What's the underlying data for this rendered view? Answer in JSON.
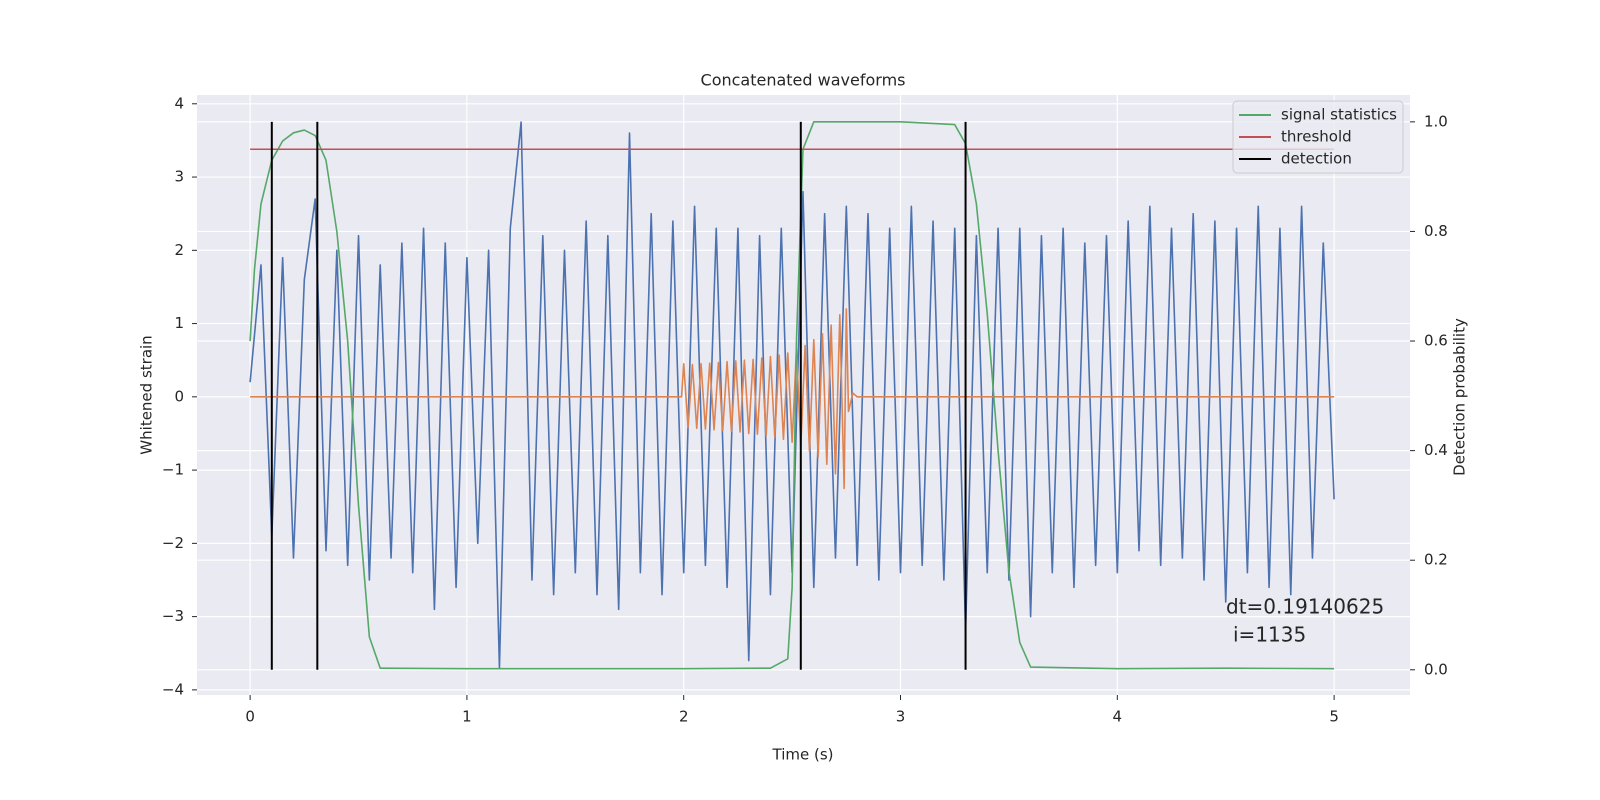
{
  "chart_data": {
    "type": "line",
    "title": "Concatenated waveforms",
    "xlabel": "Time (s)",
    "ylabel": "Whitened strain",
    "y2label": "Detection probability",
    "xlim": [
      -0.245,
      5.35
    ],
    "xticks": [
      0,
      1,
      2,
      3,
      4,
      5
    ],
    "ylim": [
      -4.07,
      4.12
    ],
    "yticks": [
      {
        "value": -4,
        "label": "−4"
      },
      {
        "value": -3,
        "label": "−3"
      },
      {
        "value": -2,
        "label": "−2"
      },
      {
        "value": -1,
        "label": "−1"
      },
      0,
      1,
      2,
      3,
      4
    ],
    "y2lim": [
      -0.046,
      1.049
    ],
    "y2ticks": [
      {
        "value": 0,
        "label": "0.0"
      },
      0.2,
      0.4,
      0.6,
      0.8,
      {
        "value": 1,
        "label": "1.0"
      }
    ],
    "grid": true,
    "legend": "upper right",
    "annotation": [
      "dt=0.19140625",
      "i=1135"
    ],
    "series": [
      {
        "color": "#4c72b0",
        "x": [
          0,
          0.05,
          0.1,
          0.15,
          0.2,
          0.25,
          0.3,
          0.35,
          0.4,
          0.45,
          0.5,
          0.55,
          0.6,
          0.65,
          0.7,
          0.75,
          0.8,
          0.85,
          0.9,
          0.95,
          1,
          1.05,
          1.1,
          1.15,
          1.2,
          1.25,
          1.3,
          1.35,
          1.4,
          1.45,
          1.5,
          1.55,
          1.6,
          1.65,
          1.7,
          1.75,
          1.8,
          1.85,
          1.9,
          1.95,
          2,
          2.05,
          2.1,
          2.15,
          2.2,
          2.25,
          2.3,
          2.35,
          2.4,
          2.45,
          2.5,
          2.55,
          2.6,
          2.65,
          2.7,
          2.75,
          2.8,
          2.85,
          2.9,
          2.95,
          3,
          3.05,
          3.1,
          3.15,
          3.2,
          3.25,
          3.3,
          3.35,
          3.4,
          3.45,
          3.5,
          3.55,
          3.6,
          3.65,
          3.7,
          3.75,
          3.8,
          3.85,
          3.9,
          3.95,
          4,
          4.05,
          4.1,
          4.15,
          4.2,
          4.25,
          4.3,
          4.35,
          4.4,
          4.45,
          4.5,
          4.55,
          4.6,
          4.65,
          4.7,
          4.75,
          4.8,
          4.85,
          4.9,
          4.95,
          5
        ],
        "values": [
          0.2,
          1.8,
          -1.9,
          1.9,
          -2.2,
          1.6,
          2.7,
          -2.1,
          2.0,
          -2.3,
          2.2,
          -2.5,
          1.8,
          -2.2,
          2.1,
          -2.4,
          2.3,
          -2.9,
          2.1,
          -2.6,
          1.9,
          -2.0,
          2.0,
          -3.7,
          2.3,
          3.75,
          -2.5,
          2.2,
          -2.7,
          2.0,
          -2.4,
          2.4,
          -2.7,
          2.2,
          -2.9,
          3.6,
          -2.4,
          2.5,
          -2.7,
          2.4,
          -2.4,
          2.6,
          -2.3,
          2.3,
          -2.6,
          2.3,
          -3.6,
          2.2,
          -2.7,
          2.3,
          -2.4,
          2.8,
          -2.6,
          2.5,
          -2.2,
          2.6,
          -2.3,
          2.5,
          -2.5,
          2.3,
          -2.4,
          2.6,
          -2.3,
          2.4,
          -2.5,
          2.3,
          -3.2,
          2.2,
          -2.4,
          2.3,
          -2.5,
          2.3,
          -3.0,
          2.2,
          -2.4,
          2.3,
          -2.6,
          2.1,
          -2.3,
          2.2,
          -2.4,
          2.4,
          -2.1,
          2.6,
          -2.3,
          2.3,
          -2.2,
          2.5,
          -2.5,
          2.4,
          -2.8,
          2.3,
          -2.4,
          2.6,
          -2.6,
          2.3,
          -2.7,
          2.6,
          -2.2,
          2.1,
          -1.4
        ]
      },
      {
        "color": "#dd8452",
        "x": [
          0,
          1.99,
          2.0,
          2.02,
          2.04,
          2.06,
          2.08,
          2.1,
          2.12,
          2.14,
          2.16,
          2.18,
          2.2,
          2.22,
          2.24,
          2.26,
          2.28,
          2.3,
          2.32,
          2.34,
          2.36,
          2.38,
          2.4,
          2.42,
          2.44,
          2.46,
          2.48,
          2.5,
          2.52,
          2.54,
          2.56,
          2.58,
          2.6,
          2.62,
          2.64,
          2.66,
          2.68,
          2.7,
          2.72,
          2.74,
          2.75,
          2.76,
          2.78,
          2.8,
          5
        ],
        "values": [
          0,
          0,
          0.45,
          -0.42,
          0.44,
          -0.43,
          0.45,
          -0.44,
          0.46,
          -0.45,
          0.47,
          -0.46,
          0.48,
          -0.47,
          0.49,
          -0.48,
          0.5,
          -0.5,
          0.51,
          -0.51,
          0.53,
          -0.53,
          0.55,
          -0.55,
          0.57,
          -0.58,
          0.6,
          -0.62,
          0.65,
          -0.68,
          0.7,
          -0.74,
          0.78,
          -0.82,
          0.86,
          -0.92,
          0.98,
          -1.05,
          1.12,
          -1.25,
          1.2,
          -0.2,
          0.05,
          0,
          0
        ]
      },
      {
        "name": "signal statistics",
        "color": "#55a868",
        "axis": "y2",
        "x": [
          0,
          0.02,
          0.05,
          0.1,
          0.15,
          0.2,
          0.25,
          0.3,
          0.35,
          0.4,
          0.45,
          0.5,
          0.55,
          0.6,
          1.0,
          2.0,
          2.4,
          2.48,
          2.5,
          2.52,
          2.55,
          2.6,
          3.0,
          3.25,
          3.3,
          3.35,
          3.4,
          3.45,
          3.5,
          3.55,
          3.6,
          4.0,
          4.5,
          5.0
        ],
        "values": [
          0.6,
          0.73,
          0.85,
          0.93,
          0.965,
          0.98,
          0.985,
          0.975,
          0.93,
          0.8,
          0.6,
          0.3,
          0.06,
          0.003,
          0.002,
          0.002,
          0.003,
          0.02,
          0.15,
          0.6,
          0.95,
          1.0,
          1.0,
          0.995,
          0.96,
          0.85,
          0.65,
          0.4,
          0.18,
          0.05,
          0.005,
          0.002,
          0.003,
          0.002
        ]
      },
      {
        "name": "threshold",
        "color": "#c44e52",
        "axis": "y2",
        "x": [
          0,
          5
        ],
        "values": [
          0.95,
          0.95
        ]
      }
    ],
    "vlines": {
      "name": "detection",
      "color": "#000000",
      "axis": "y2",
      "ymin": 0,
      "ymax": 1,
      "x": [
        0.1,
        0.31,
        2.54,
        3.3
      ]
    }
  }
}
